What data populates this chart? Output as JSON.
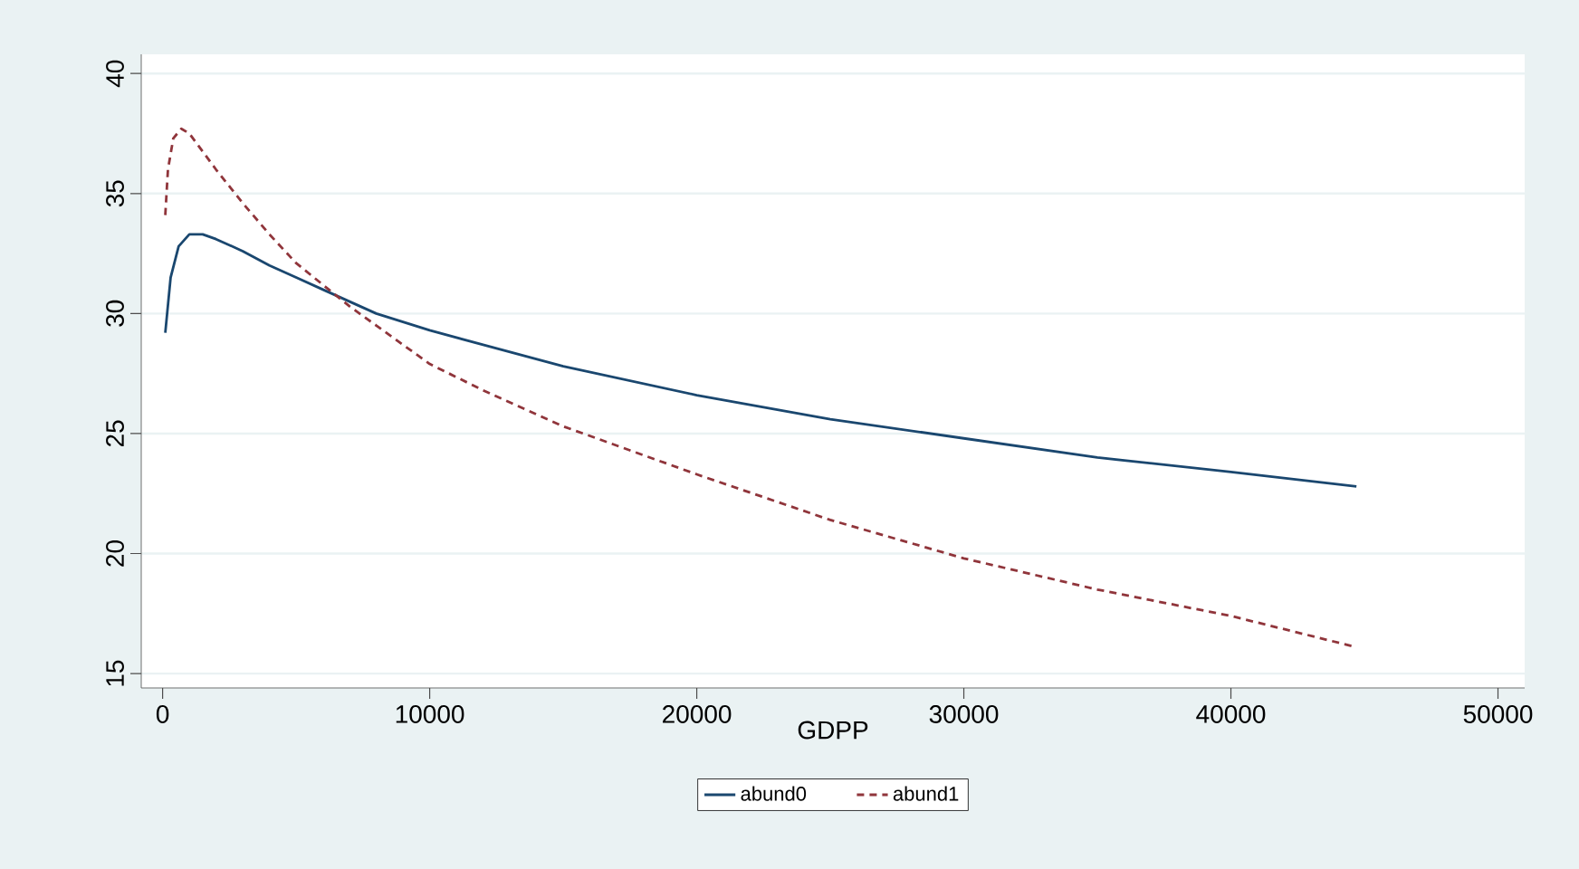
{
  "chart_data": {
    "type": "line",
    "xlabel": "GDPP",
    "xlim": [
      -800,
      51000
    ],
    "ylim": [
      14.4,
      40.8
    ],
    "xticks": [
      0,
      10000,
      20000,
      30000,
      40000,
      50000
    ],
    "yticks": [
      15,
      20,
      25,
      30,
      35,
      40
    ],
    "grid": "y",
    "legend": "bottom",
    "marker": "none",
    "series": [
      {
        "name": "abund0",
        "color": "#1a476f",
        "line_style": "solid",
        "x": [
          100,
          300,
          600,
          1000,
          1500,
          2000,
          3000,
          4000,
          5000,
          6000,
          7000,
          8000,
          10000,
          12000,
          15000,
          20000,
          25000,
          30000,
          35000,
          40000,
          44700
        ],
        "values": [
          29.2,
          31.5,
          32.8,
          33.3,
          33.3,
          33.1,
          32.6,
          32.0,
          31.5,
          31.0,
          30.5,
          30.0,
          29.3,
          28.7,
          27.8,
          26.6,
          25.6,
          24.8,
          24.0,
          23.4,
          22.8
        ]
      },
      {
        "name": "abund1",
        "color": "#90353b",
        "line_style": "dashed",
        "x": [
          100,
          200,
          400,
          700,
          1000,
          2000,
          3000,
          4000,
          5000,
          6000,
          7000,
          8000,
          10000,
          12000,
          15000,
          20000,
          25000,
          30000,
          35000,
          40000,
          44700
        ],
        "values": [
          34.1,
          36.0,
          37.3,
          37.7,
          37.5,
          36.0,
          34.6,
          33.3,
          32.1,
          31.2,
          30.3,
          29.5,
          27.9,
          26.8,
          25.3,
          23.3,
          21.4,
          19.8,
          18.5,
          17.4,
          16.1
        ]
      }
    ]
  }
}
